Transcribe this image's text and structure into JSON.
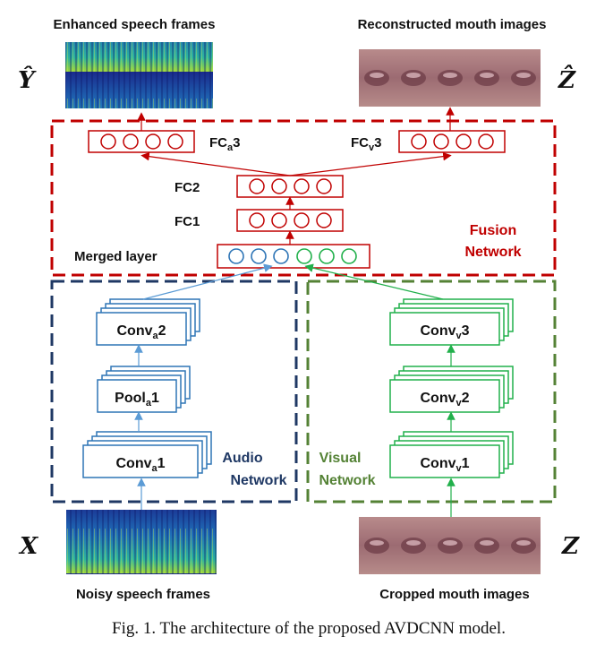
{
  "labels": {
    "enhanced_speech_frames": "Enhanced speech frames",
    "reconstructed_mouth_images": "Reconstructed mouth images",
    "noisy_speech_frames": "Noisy speech frames",
    "cropped_mouth_images": "Cropped mouth images",
    "y_hat": "Ŷ",
    "z_hat": "Ẑ",
    "x": "X",
    "z": "Z"
  },
  "fusion": {
    "title_line1": "Fusion",
    "title_line2": "Network",
    "fca_base": "FC",
    "fca_sub": "a",
    "fca_num": "3",
    "fcv_base": "FC",
    "fcv_sub": "v",
    "fcv_num": "3",
    "fc2": "FC2",
    "fc1": "FC1",
    "merged": "Merged layer"
  },
  "audio": {
    "title_line1": "Audio",
    "title_line2": "Network",
    "conv2_base": "Conv",
    "conv2_sub": "a",
    "conv2_num": "2",
    "pool1_base": "Pool",
    "pool1_sub": "a",
    "pool1_num": "1",
    "conv1_base": "Conv",
    "conv1_sub": "a",
    "conv1_num": "1"
  },
  "visual": {
    "title_line1": "Visual",
    "title_line2": "Network",
    "conv3_base": "Conv",
    "conv3_sub": "v",
    "conv3_num": "3",
    "conv2_base": "Conv",
    "conv2_sub": "v",
    "conv2_num": "2",
    "conv1_base": "Conv",
    "conv1_sub": "v",
    "conv1_num": "1"
  },
  "caption": "Fig. 1. The architecture of the proposed AVDCNN model.",
  "colors": {
    "fusion": "#c00000",
    "audio": "#1f3864",
    "audio_block": "#2e75b6",
    "visual": "#548235",
    "visual_block": "#21b04b"
  }
}
